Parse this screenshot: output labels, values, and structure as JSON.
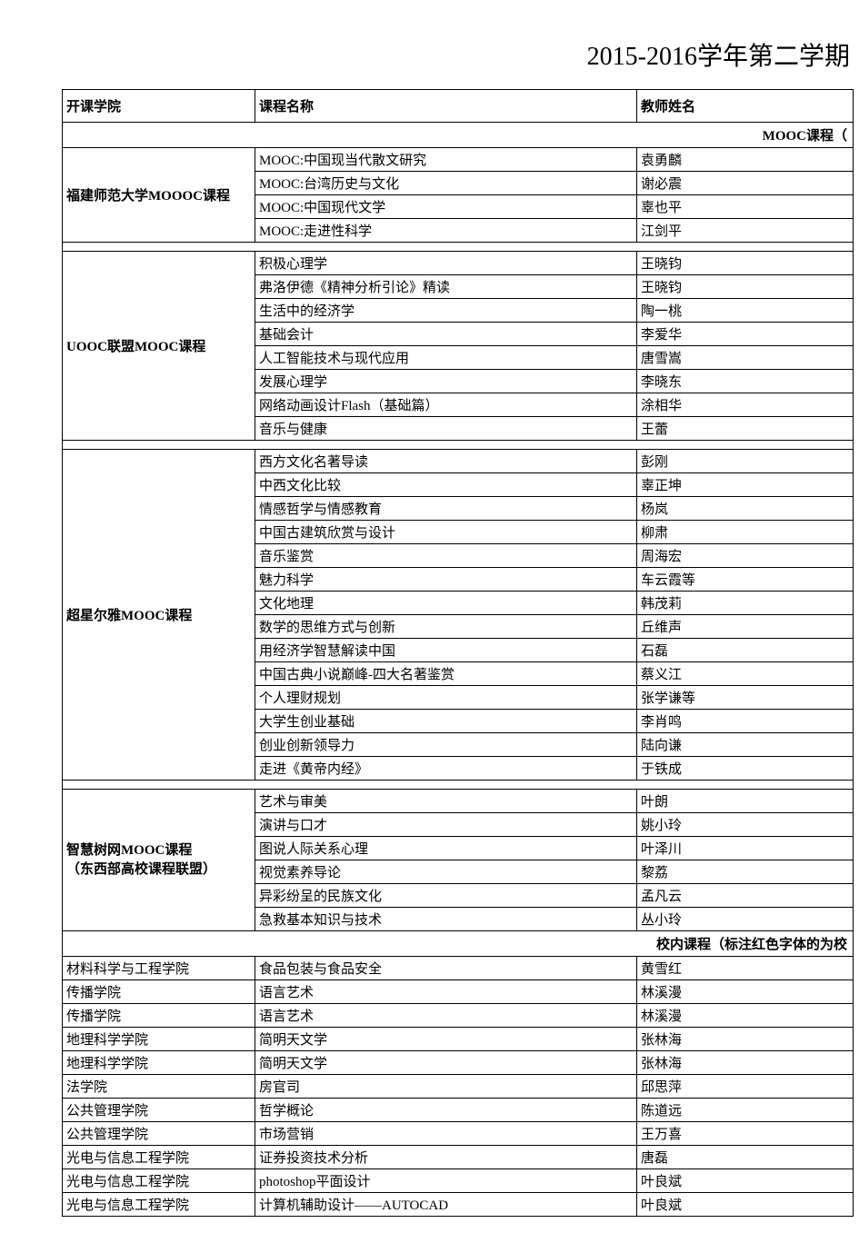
{
  "title": "2015-2016学年第二学期",
  "headers": {
    "col1": "开课学院",
    "col2": "课程名称",
    "col3": "教师姓名"
  },
  "section1_label": "MOOC课程（",
  "section2_label": "校内课程（标注红色字体的为校",
  "groups": [
    {
      "label": "福建师范大学MOOOC课程",
      "rows": [
        {
          "course": "MOOC:中国现当代散文研究",
          "teacher": "袁勇麟"
        },
        {
          "course": "MOOC:台湾历史与文化",
          "teacher": "谢必震"
        },
        {
          "course": "MOOC:中国现代文学",
          "teacher": "辜也平"
        },
        {
          "course": "MOOC:走进性科学",
          "teacher": "江剑平"
        }
      ]
    },
    {
      "label": "UOOC联盟MOOC课程",
      "rows": [
        {
          "course": "积极心理学",
          "teacher": "王晓钧"
        },
        {
          "course": "弗洛伊德《精神分析引论》精读",
          "teacher": "王晓钧"
        },
        {
          "course": "生活中的经济学",
          "teacher": "陶一桃"
        },
        {
          "course": "基础会计",
          "teacher": "李爱华"
        },
        {
          "course": "人工智能技术与现代应用",
          "teacher": "唐雪嵩"
        },
        {
          "course": "发展心理学",
          "teacher": "李晓东"
        },
        {
          "course": "网络动画设计Flash（基础篇）",
          "teacher": "涂相华"
        },
        {
          "course": "音乐与健康",
          "teacher": "王蕾"
        }
      ]
    },
    {
      "label": "超星尔雅MOOC课程",
      "rows": [
        {
          "course": "西方文化名著导读",
          "teacher": "彭刚"
        },
        {
          "course": "中西文化比较",
          "teacher": "辜正坤"
        },
        {
          "course": "情感哲学与情感教育",
          "teacher": "杨岚"
        },
        {
          "course": "中国古建筑欣赏与设计",
          "teacher": "柳肃"
        },
        {
          "course": "音乐鉴赏",
          "teacher": "周海宏"
        },
        {
          "course": "魅力科学",
          "teacher": "车云霞等"
        },
        {
          "course": "文化地理",
          "teacher": "韩茂莉"
        },
        {
          "course": "数学的思维方式与创新",
          "teacher": "丘维声"
        },
        {
          "course": "用经济学智慧解读中国",
          "teacher": "石磊"
        },
        {
          "course": "中国古典小说巅峰-四大名著鉴赏",
          "teacher": "蔡义江"
        },
        {
          "course": "个人理财规划",
          "teacher": "张学谦等"
        },
        {
          "course": "大学生创业基础",
          "teacher": "李肖鸣"
        },
        {
          "course": "创业创新领导力",
          "teacher": "陆向谦"
        },
        {
          "course": "走进《黄帝内经》",
          "teacher": "于铁成"
        }
      ]
    },
    {
      "label": "智慧树网MOOC课程\n（东西部高校课程联盟）",
      "multiline": true,
      "rows": [
        {
          "course": "艺术与审美",
          "teacher": "叶朗"
        },
        {
          "course": "演讲与口才",
          "teacher": "姚小玲"
        },
        {
          "course": "图说人际关系心理",
          "teacher": "叶泽川"
        },
        {
          "course": "视觉素养导论",
          "teacher": "黎荔"
        },
        {
          "course": "异彩纷呈的民族文化",
          "teacher": "孟凡云"
        },
        {
          "course": "急救基本知识与技术",
          "teacher": "丛小玲"
        }
      ]
    }
  ],
  "campus_rows": [
    {
      "college": "材料科学与工程学院",
      "course": "食品包装与食品安全",
      "teacher": "黄雪红"
    },
    {
      "college": "传播学院",
      "course": "语言艺术",
      "teacher": "林溪漫"
    },
    {
      "college": "传播学院",
      "course": "语言艺术",
      "teacher": "林溪漫"
    },
    {
      "college": "地理科学学院",
      "course": "简明天文学",
      "teacher": "张林海"
    },
    {
      "college": "地理科学学院",
      "course": "简明天文学",
      "teacher": "张林海"
    },
    {
      "college": "法学院",
      "course": "房官司",
      "teacher": "邱思萍"
    },
    {
      "college": "公共管理学院",
      "course": "哲学概论",
      "teacher": "陈道远"
    },
    {
      "college": "公共管理学院",
      "course": "市场营销",
      "teacher": "王万喜"
    },
    {
      "college": "光电与信息工程学院",
      "course": "证券投资技术分析",
      "teacher": "唐磊"
    },
    {
      "college": "光电与信息工程学院",
      "course": "photoshop平面设计",
      "teacher": "叶良斌"
    },
    {
      "college": "光电与信息工程学院",
      "course": "计算机辅助设计——AUTOCAD",
      "teacher": "叶良斌"
    }
  ]
}
